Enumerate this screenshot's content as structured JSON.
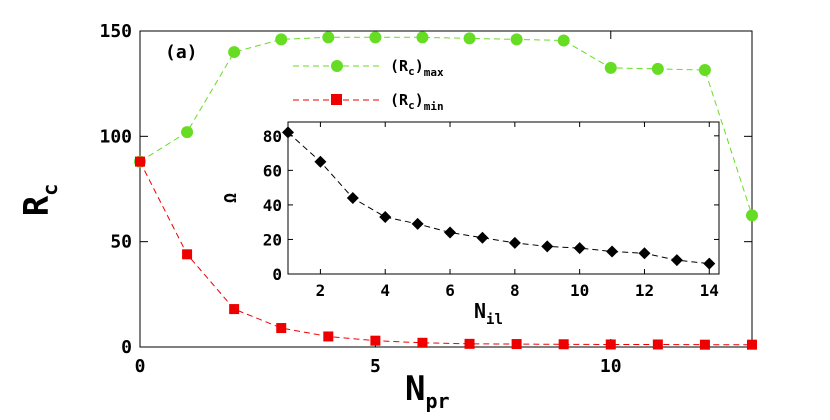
{
  "chart_data": [
    {
      "type": "line",
      "panel_label": "(a)",
      "xlabel": {
        "main": "N",
        "sub": "pr"
      },
      "ylabel": {
        "main": "R",
        "sub": "c"
      },
      "xlim": [
        0,
        13
      ],
      "ylim": [
        0,
        150
      ],
      "xticks": [
        0,
        5,
        10
      ],
      "yticks": [
        0,
        50,
        100,
        150
      ],
      "grid": false,
      "legend_position": "top-center",
      "series": [
        {
          "name": {
            "main": "(R",
            "sub1": "c",
            "close": ")",
            "sub2": "max"
          },
          "color": "#66dd22",
          "marker": "circle",
          "line_style": "dashed",
          "x": [
            0,
            1,
            2,
            3,
            4,
            5,
            6,
            7,
            8,
            9,
            10,
            11,
            12,
            13
          ],
          "y": [
            88,
            102,
            140,
            146,
            147,
            147,
            147,
            146.5,
            146,
            145.5,
            132.5,
            132,
            131.5,
            62.5
          ]
        },
        {
          "name": {
            "main": "(R",
            "sub1": "c",
            "close": ")",
            "sub2": "min"
          },
          "color": "#ee0000",
          "marker": "square",
          "line_style": "dashed",
          "x": [
            0,
            1,
            2,
            3,
            4,
            5,
            6,
            7,
            8,
            9,
            10,
            11,
            12,
            13
          ],
          "y": [
            88,
            44,
            18,
            9,
            5,
            3,
            2,
            1.5,
            1.4,
            1.3,
            1.2,
            1.2,
            1.1,
            1.1
          ]
        }
      ]
    },
    {
      "type": "line",
      "role": "inset",
      "xlabel": {
        "main": "N",
        "sub": "il"
      },
      "ylabel": "Ω",
      "xlim": [
        1,
        14.3
      ],
      "ylim": [
        0,
        88
      ],
      "xticks": [
        2,
        4,
        6,
        8,
        10,
        12,
        14
      ],
      "yticks": [
        0,
        20,
        40,
        60,
        80
      ],
      "grid": false,
      "series": [
        {
          "color": "#000000",
          "marker": "diamond",
          "line_style": "dashed",
          "x": [
            1,
            2,
            3,
            4,
            5,
            6,
            7,
            8,
            9,
            10,
            11,
            12,
            13,
            14
          ],
          "y": [
            82,
            65,
            44,
            33,
            29,
            24,
            21,
            18,
            16,
            15,
            13,
            12,
            8,
            6
          ]
        }
      ]
    }
  ]
}
